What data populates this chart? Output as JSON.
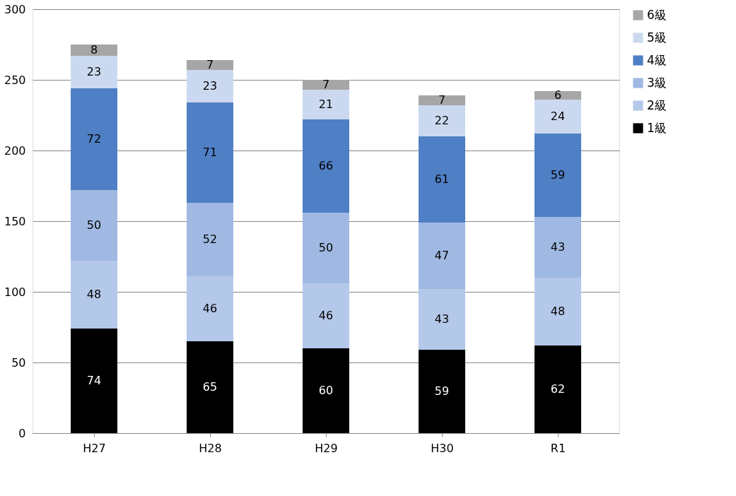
{
  "chart_data": {
    "type": "bar",
    "stacked": true,
    "categories": [
      "H27",
      "H28",
      "H29",
      "H30",
      "R1"
    ],
    "series": [
      {
        "name": "1級",
        "color": "#000000",
        "values": [
          74,
          65,
          60,
          59,
          62
        ]
      },
      {
        "name": "2級",
        "color": "#b4c8ea",
        "values": [
          48,
          46,
          46,
          43,
          48
        ]
      },
      {
        "name": "3級",
        "color": "#9fb9e2",
        "values": [
          50,
          52,
          50,
          47,
          43
        ]
      },
      {
        "name": "4級",
        "color": "#4f7fc4",
        "values": [
          72,
          71,
          66,
          61,
          59
        ]
      },
      {
        "name": "5級",
        "color": "#cbd9f0",
        "values": [
          23,
          23,
          21,
          22,
          24
        ]
      },
      {
        "name": "6級",
        "color": "#a6a6a6",
        "values": [
          8,
          7,
          7,
          7,
          6
        ]
      }
    ],
    "ylim": [
      0,
      300
    ],
    "yticks": [
      0,
      50,
      100,
      150,
      200,
      250,
      300
    ],
    "grid": "y",
    "legend": "right",
    "data_labels": true
  }
}
